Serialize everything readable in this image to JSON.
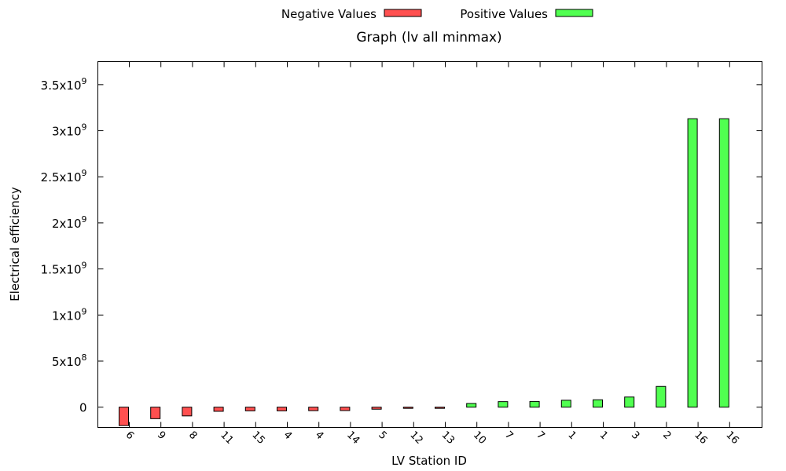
{
  "chart_data": {
    "type": "bar",
    "title": "Graph (lv all minmax)",
    "xlabel": "LV Station ID",
    "ylabel": "Electrical efficiency",
    "categories": [
      "6",
      "9",
      "8",
      "11",
      "15",
      "4",
      "4",
      "14",
      "5",
      "12",
      "13",
      "10",
      "7",
      "7",
      "1",
      "1",
      "3",
      "2",
      "16",
      "16"
    ],
    "series": [
      {
        "name": "Negative Values",
        "color": "#ff5050",
        "values": [
          -200000000,
          -125000000,
          -95000000,
          -45000000,
          -40000000,
          -40000000,
          -38000000,
          -37000000,
          -22000000,
          -12000000,
          -10000000,
          null,
          null,
          null,
          null,
          null,
          null,
          null,
          null,
          null
        ]
      },
      {
        "name": "Positive Values",
        "color": "#50ff50",
        "values": [
          null,
          null,
          null,
          null,
          null,
          null,
          null,
          null,
          null,
          null,
          null,
          40000000,
          60000000,
          62000000,
          75000000,
          80000000,
          110000000,
          225000000,
          3130000000,
          3130000000
        ]
      }
    ],
    "ylim": [
      -220000000,
      3750000000
    ],
    "yticks": [
      {
        "value": 0,
        "base": "0",
        "exp": ""
      },
      {
        "value": 500000000,
        "base": "5x10",
        "exp": "8"
      },
      {
        "value": 1000000000,
        "base": "1x10",
        "exp": "9"
      },
      {
        "value": 1500000000,
        "base": "1.5x10",
        "exp": "9"
      },
      {
        "value": 2000000000,
        "base": "2x10",
        "exp": "9"
      },
      {
        "value": 2500000000,
        "base": "2.5x10",
        "exp": "9"
      },
      {
        "value": 3000000000,
        "base": "3x10",
        "exp": "9"
      },
      {
        "value": 3500000000,
        "base": "3.5x10",
        "exp": "9"
      }
    ],
    "legend_position": "top-center",
    "grid": false
  }
}
